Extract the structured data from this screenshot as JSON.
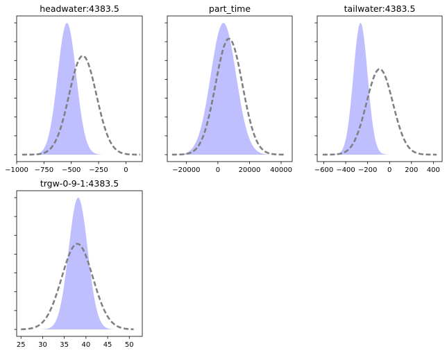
{
  "colors": {
    "prior_fill": "#bfbfff",
    "posterior_line": "#808080",
    "axes": "#000000",
    "background": "#ffffff"
  },
  "chart_data": [
    {
      "type": "area",
      "title": "headwater:4383.5",
      "xlabel": "",
      "ylabel": "",
      "xlim": [
        -1000,
        150
      ],
      "x_ticks": [
        -1000,
        -750,
        -500,
        -250,
        0
      ],
      "x_tick_labels": [
        "−1000",
        "−750",
        "−500",
        "−250",
        "0"
      ],
      "y_ticks_labeled": false,
      "grid": false,
      "series": [
        {
          "style": "filled",
          "mean": -540,
          "sd": 85,
          "x_range": [
            -950,
            -130
          ],
          "peak": 1.0
        },
        {
          "style": "dashed",
          "mean": -395,
          "sd": 125,
          "x_range": [
            -950,
            130
          ],
          "peak": 0.75
        }
      ]
    },
    {
      "type": "area",
      "title": "part_time",
      "xlabel": "",
      "ylabel": "",
      "xlim": [
        -32000,
        47000
      ],
      "x_ticks": [
        -20000,
        0,
        20000,
        40000
      ],
      "x_tick_labels": [
        "−20000",
        "0",
        "20000",
        "40000"
      ],
      "y_ticks_labeled": false,
      "grid": false,
      "series": [
        {
          "style": "filled",
          "mean": 3500,
          "sd": 8000,
          "x_range": [
            -27000,
            34000
          ],
          "peak": 1.0
        },
        {
          "style": "dashed",
          "mean": 7000,
          "sd": 8500,
          "x_range": [
            -29000,
            43000
          ],
          "peak": 0.88
        }
      ]
    },
    {
      "type": "area",
      "title": "tailwater:4383.5",
      "xlabel": "",
      "ylabel": "",
      "xlim": [
        -660,
        480
      ],
      "x_ticks": [
        -600,
        -400,
        -200,
        0,
        200,
        400
      ],
      "x_tick_labels": [
        "−600",
        "−400",
        "−200",
        "0",
        "200",
        "400"
      ],
      "y_ticks_labeled": false,
      "grid": false,
      "series": [
        {
          "style": "filled",
          "mean": -265,
          "sd": 65,
          "x_range": [
            -610,
            80
          ],
          "peak": 1.0
        },
        {
          "style": "dashed",
          "mean": -90,
          "sd": 120,
          "x_range": [
            -610,
            430
          ],
          "peak": 0.65
        }
      ]
    },
    {
      "type": "area",
      "title": "trgw-0-9-1:4383.5",
      "xlabel": "",
      "ylabel": "",
      "xlim": [
        24,
        53
      ],
      "x_ticks": [
        25,
        30,
        35,
        40,
        45,
        50
      ],
      "x_tick_labels": [
        "25",
        "30",
        "35",
        "40",
        "45",
        "50"
      ],
      "y_ticks_labeled": false,
      "grid": false,
      "series": [
        {
          "style": "filled",
          "mean": 38.2,
          "sd": 2.2,
          "x_range": [
            25,
            51
          ],
          "peak": 1.0
        },
        {
          "style": "dashed",
          "mean": 38.0,
          "sd": 3.6,
          "x_range": [
            25,
            51
          ],
          "peak": 0.65
        }
      ]
    }
  ]
}
